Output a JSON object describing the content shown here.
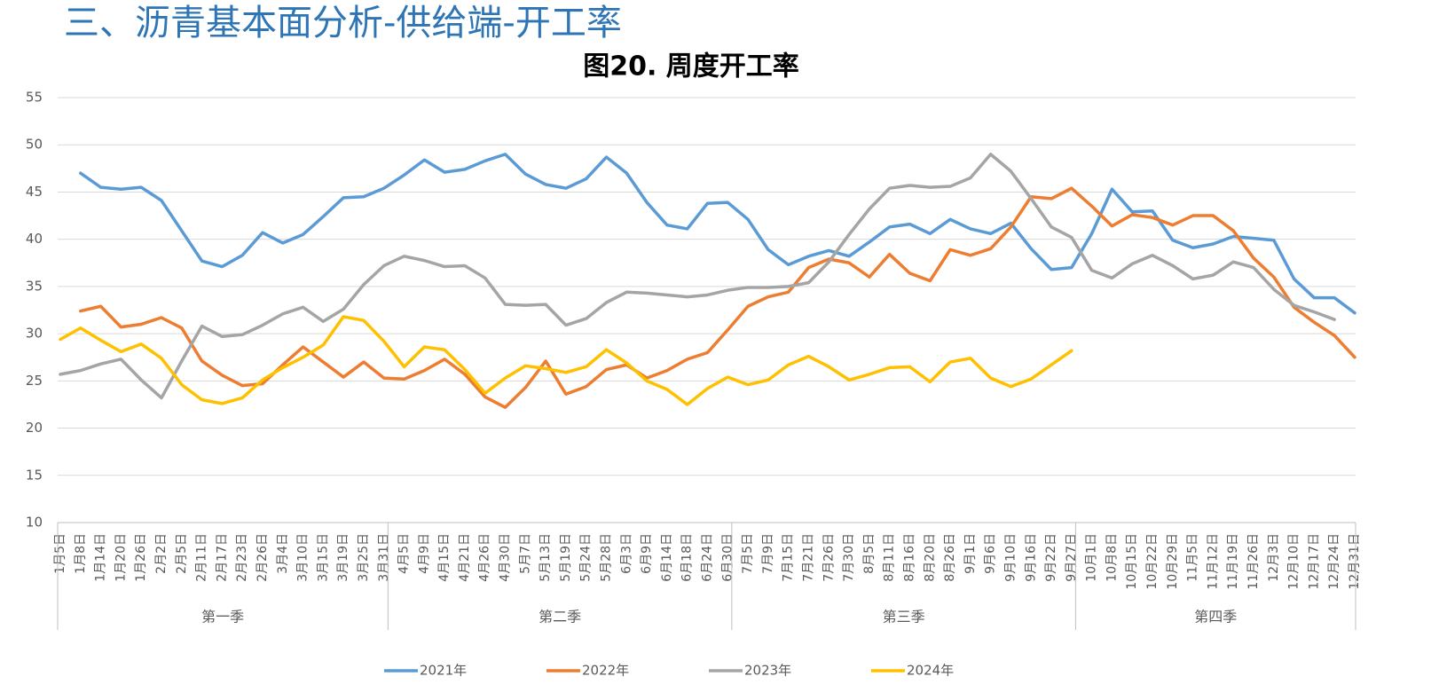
{
  "header": {
    "title": "三、沥青基本面分析-供给端-开工率"
  },
  "chart_data": {
    "type": "line",
    "title": "图20. 周度开工率",
    "categories": [
      "1月5日",
      "1月8日",
      "1月14日",
      "1月20日",
      "1月26日",
      "2月2日",
      "2月5日",
      "2月11日",
      "2月17日",
      "2月23日",
      "2月26日",
      "3月4日",
      "3月10日",
      "3月15日",
      "3月19日",
      "3月25日",
      "3月31日",
      "4月5日",
      "4月9日",
      "4月15日",
      "4月21日",
      "4月26日",
      "4月30日",
      "5月7日",
      "5月13日",
      "5月19日",
      "5月24日",
      "5月28日",
      "6月3日",
      "6月9日",
      "6月14日",
      "6月18日",
      "6月24日",
      "6月30日",
      "7月5日",
      "7月9日",
      "7月15日",
      "7月21日",
      "7月26日",
      "7月30日",
      "8月5日",
      "8月11日",
      "8月16日",
      "8月20日",
      "8月26日",
      "9月1日",
      "9月6日",
      "9月10日",
      "9月16日",
      "9月22日",
      "9月27日",
      "10月1日",
      "10月8日",
      "10月15日",
      "10月22日",
      "10月29日",
      "11月5日",
      "11月12日",
      "11月19日",
      "11月26日",
      "12月3日",
      "12月10日",
      "12月17日",
      "12月24日",
      "12月31日"
    ],
    "groups": [
      {
        "label": "第一季",
        "count": 17
      },
      {
        "label": "第二季",
        "count": 17
      },
      {
        "label": "第三季",
        "count": 17
      },
      {
        "label": "第四季",
        "count": 14
      }
    ],
    "series": [
      {
        "name": "2021年",
        "color": "#5b9bd5",
        "values": [
          null,
          47,
          45.5,
          45.3,
          45.5,
          44.1,
          40.9,
          37.7,
          37.1,
          38.3,
          40.7,
          39.6,
          40.5,
          42.4,
          44.4,
          44.5,
          45.4,
          46.8,
          48.4,
          47.1,
          47.4,
          48.3,
          49,
          46.9,
          45.8,
          45.4,
          46.4,
          48.7,
          47,
          43.9,
          41.5,
          41.1,
          43.8,
          43.9,
          42.1,
          38.9,
          37.3,
          38.2,
          38.8,
          38.2,
          39.7,
          41.3,
          41.6,
          40.6,
          42.1,
          41.1,
          40.6,
          41.7,
          39,
          36.8,
          37,
          40.6,
          45.3,
          42.9,
          43,
          39.9,
          39.1,
          39.5,
          40.3,
          40.1,
          39.9,
          35.8,
          33.8,
          33.8,
          32.2
        ]
      },
      {
        "name": "2022年",
        "color": "#ed7d31",
        "values": [
          null,
          32.4,
          32.9,
          30.7,
          31,
          31.7,
          30.6,
          27.1,
          25.6,
          24.5,
          24.7,
          26.7,
          28.6,
          27,
          25.4,
          27,
          25.3,
          25.2,
          26.1,
          27.3,
          25.7,
          23.3,
          22.2,
          24.3,
          27.1,
          23.6,
          24.4,
          26.2,
          26.7,
          25.3,
          26.1,
          27.3,
          28,
          30.4,
          32.9,
          33.9,
          34.4,
          37,
          37.9,
          37.5,
          36,
          38.4,
          36.4,
          35.6,
          38.9,
          38.3,
          39,
          41.3,
          44.5,
          44.3,
          45.4,
          43.5,
          41.4,
          42.6,
          42.3,
          41.5,
          42.5,
          42.5,
          40.9,
          38,
          36,
          32.8,
          31.2,
          29.8,
          27.5
        ]
      },
      {
        "name": "2023年",
        "color": "#a5a5a5",
        "values": [
          25.7,
          26.1,
          26.8,
          27.3,
          25.1,
          23.2,
          27.1,
          30.8,
          29.7,
          29.9,
          30.9,
          32.1,
          32.8,
          31.3,
          32.6,
          35.2,
          37.2,
          38.2,
          37.75,
          37.1,
          37.2,
          35.9,
          33.1,
          33,
          33.1,
          30.9,
          31.6,
          33.3,
          34.4,
          34.3,
          34.1,
          33.9,
          34.1,
          34.6,
          34.9,
          34.9,
          35,
          35.4,
          37.6,
          40.5,
          43.2,
          45.4,
          45.7,
          45.5,
          45.6,
          46.5,
          49,
          47.2,
          44.3,
          41.3,
          40.2,
          36.7,
          35.9,
          37.4,
          38.3,
          37.2,
          35.8,
          36.2,
          37.6,
          37,
          34.7,
          33,
          32.3,
          31.5,
          null
        ]
      },
      {
        "name": "2024年",
        "color": "#ffc000",
        "values": [
          29.4,
          30.6,
          29.3,
          28.1,
          28.9,
          27.4,
          24.6,
          23,
          22.6,
          23.2,
          25.1,
          26.4,
          27.5,
          28.8,
          31.8,
          31.4,
          29.2,
          26.5,
          28.6,
          28.3,
          26.2,
          23.7,
          25.3,
          26.6,
          26.3,
          25.9,
          26.5,
          28.3,
          26.9,
          25,
          24.1,
          22.5,
          24.2,
          25.4,
          24.6,
          25.1,
          26.7,
          27.6,
          26.5,
          25.1,
          25.7,
          26.4,
          26.5,
          24.9,
          27,
          27.4,
          25.3,
          24.4,
          25.2,
          26.7,
          28.2,
          null,
          null,
          null,
          null,
          null,
          null,
          null,
          null,
          null,
          null,
          null,
          null,
          null,
          null
        ]
      }
    ],
    "ylim": [
      10,
      55
    ],
    "yticks": [
      10,
      15,
      20,
      25,
      30,
      35,
      40,
      45,
      50,
      55
    ],
    "grid": true,
    "legend": "bottom"
  }
}
